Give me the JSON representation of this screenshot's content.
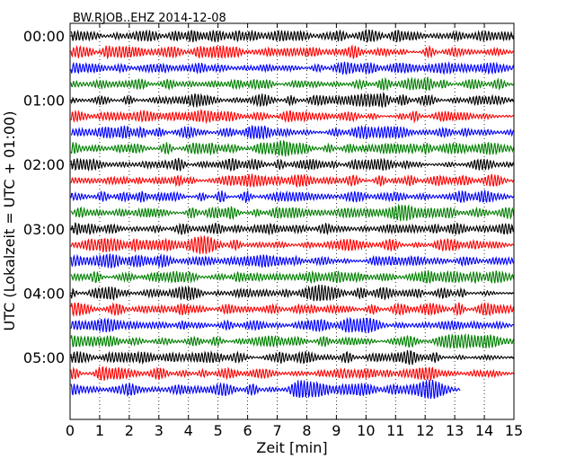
{
  "chart_data": {
    "type": "line",
    "title": "BW.RJOB..EHZ 2014-12-08",
    "xlabel": "Zeit  [min]",
    "ylabel": "UTC (Lokalzeit = UTC + 01:00)",
    "xlim": [
      0,
      15
    ],
    "x_ticks": [
      "0",
      "1",
      "2",
      "3",
      "4",
      "5",
      "6",
      "7",
      "8",
      "9",
      "10",
      "11",
      "12",
      "13",
      "14",
      "15"
    ],
    "y_ticks": [
      "00:00",
      "01:00",
      "02:00",
      "03:00",
      "04:00",
      "05:00"
    ],
    "grid": "vertical dotted lines at each minute",
    "line_interval_minutes": 15,
    "line_count": 23,
    "line_colors": [
      "#000000",
      "#ff0000",
      "#0000ff",
      "#008000"
    ],
    "last_line_end_minute": 13.2,
    "description_of_signal": "continuous seismic noise trace per 15-minute line"
  }
}
